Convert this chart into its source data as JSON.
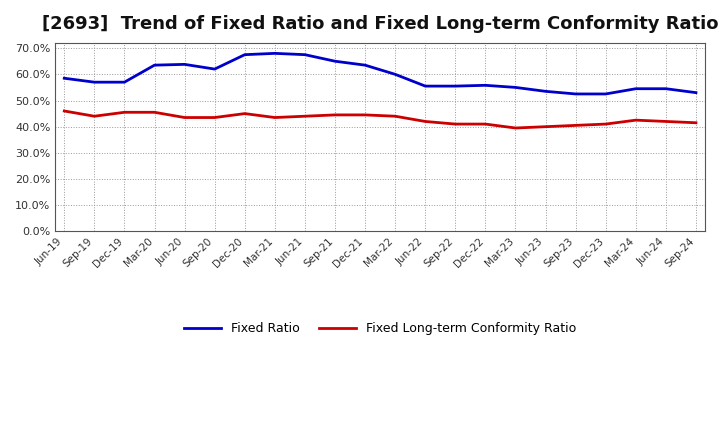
{
  "title": "[2693]  Trend of Fixed Ratio and Fixed Long-term Conformity Ratio",
  "labels": [
    "Jun-19",
    "Sep-19",
    "Dec-19",
    "Mar-20",
    "Jun-20",
    "Sep-20",
    "Dec-20",
    "Mar-21",
    "Jun-21",
    "Sep-21",
    "Dec-21",
    "Mar-22",
    "Jun-22",
    "Sep-22",
    "Dec-22",
    "Mar-23",
    "Jun-23",
    "Sep-23",
    "Dec-23",
    "Mar-24",
    "Jun-24",
    "Sep-24"
  ],
  "fixed_ratio": [
    58.5,
    57.0,
    57.0,
    63.5,
    63.8,
    62.0,
    67.5,
    68.0,
    67.5,
    65.0,
    63.5,
    60.0,
    55.5,
    55.5,
    55.8,
    55.0,
    53.5,
    52.5,
    52.5,
    54.5,
    54.5,
    53.0
  ],
  "fixed_lt_ratio": [
    46.0,
    44.0,
    45.5,
    45.5,
    43.5,
    43.5,
    45.0,
    43.5,
    44.0,
    44.5,
    44.5,
    44.0,
    42.0,
    41.0,
    41.0,
    39.5,
    40.0,
    40.5,
    41.0,
    42.5,
    42.0,
    41.5
  ],
  "fixed_ratio_color": "#0000cc",
  "fixed_lt_ratio_color": "#cc0000",
  "background_color": "#ffffff",
  "grid_color": "#999999",
  "legend_fixed_ratio": "Fixed Ratio",
  "legend_fixed_lt_ratio": "Fixed Long-term Conformity Ratio",
  "title_fontsize": 13,
  "line_width": 2.0,
  "yticks": [
    0,
    10,
    20,
    30,
    40,
    50,
    60,
    70
  ],
  "ylim_max": 72
}
